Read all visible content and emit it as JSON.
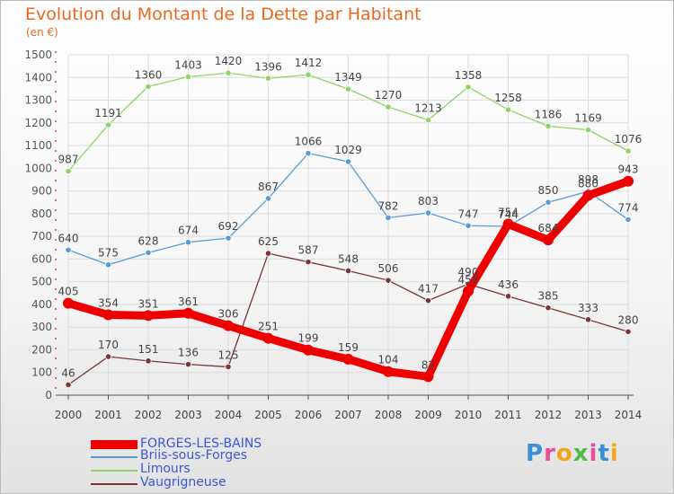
{
  "title": "Evolution du Montant de la Dette par Habitant",
  "subtitle": "(en €)",
  "logo": {
    "text": "Proxiti",
    "letters": [
      {
        "c": "P",
        "color": "#3a8fd8"
      },
      {
        "c": "r",
        "color": "#e64e9c"
      },
      {
        "c": "o",
        "color": "#f2a51d"
      },
      {
        "c": "x",
        "color": "#55b848"
      },
      {
        "c": "i",
        "color": "#e64e9c"
      },
      {
        "c": "t",
        "color": "#3a8fd8"
      },
      {
        "c": "i",
        "color": "#f2a51d"
      }
    ]
  },
  "chart_data": {
    "type": "line",
    "categories": [
      "2000",
      "2001",
      "2002",
      "2003",
      "2004",
      "2005",
      "2006",
      "2007",
      "2008",
      "2009",
      "2010",
      "2011",
      "2012",
      "2013",
      "2014"
    ],
    "ylim": [
      0,
      1500
    ],
    "yticks": [
      0,
      100,
      200,
      300,
      400,
      500,
      600,
      700,
      800,
      900,
      1000,
      1100,
      1200,
      1300,
      1400,
      1500
    ],
    "grid": true,
    "legend_position": "bottom-left",
    "series": [
      {
        "name": "FORGES-LES-BAINS",
        "color": "#ee0000",
        "values": [
          405,
          354,
          351,
          361,
          306,
          251,
          199,
          159,
          104,
          82,
          458,
          754,
          684,
          880,
          943
        ],
        "labels": [
          "405",
          "354",
          "351",
          "361",
          "306",
          "251",
          "199",
          "159",
          "104",
          "82",
          "458",
          "754",
          "684",
          "880",
          "943"
        ]
      },
      {
        "name": "Briis-sous-Forges",
        "color": "#5b9bd5",
        "values": [
          640,
          575,
          628,
          674,
          692,
          867,
          1066,
          1029,
          782,
          803,
          747,
          744,
          850,
          898,
          774
        ],
        "labels": [
          "640",
          "575",
          "628",
          "674",
          "692",
          "867",
          "1066",
          "1029",
          "782",
          "803",
          "747",
          "744",
          "850",
          "898",
          "774"
        ]
      },
      {
        "name": "Limours",
        "color": "#8fd46b",
        "values": [
          987,
          1191,
          1360,
          1403,
          1420,
          1396,
          1412,
          1349,
          1270,
          1213,
          1358,
          1258,
          1186,
          1169,
          1076
        ],
        "labels": [
          "987",
          "1191",
          "1360",
          "1403",
          "1420",
          "1396",
          "1412",
          "1349",
          "1270",
          "1213",
          "1358",
          "1258",
          "1186",
          "1169",
          "1076"
        ]
      },
      {
        "name": "Vaugrigneuse",
        "color": "#7b3535",
        "values": [
          46,
          170,
          151,
          136,
          125,
          625,
          587,
          548,
          506,
          417,
          490,
          436,
          385,
          333,
          280
        ],
        "labels": [
          "46",
          "170",
          "151",
          "136",
          "125",
          "625",
          "587",
          "548",
          "506",
          "417",
          "490",
          "436",
          "385",
          "333",
          "280"
        ]
      }
    ]
  }
}
